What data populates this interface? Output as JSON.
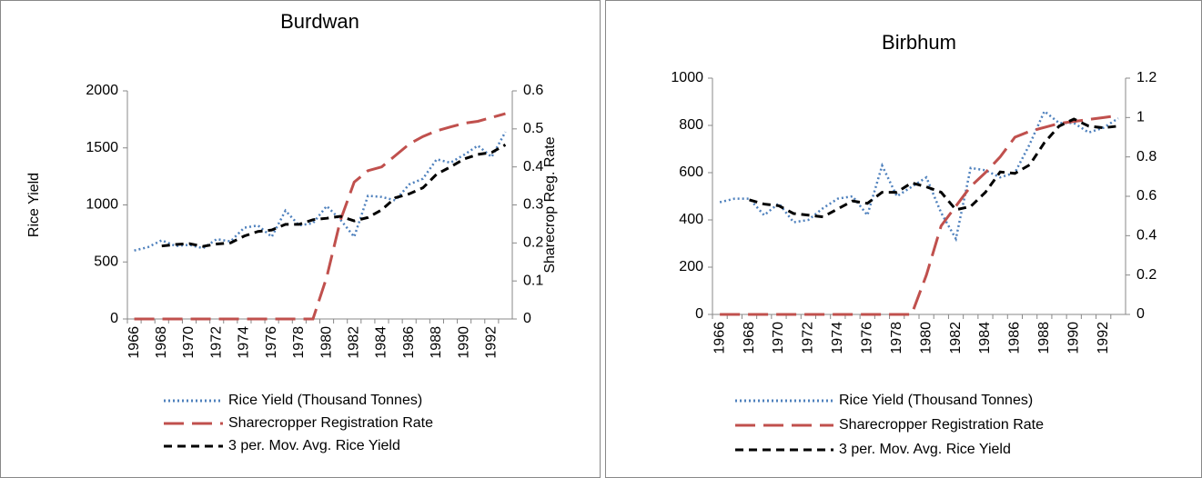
{
  "chart_data": [
    {
      "type": "line",
      "title": "Burdwan",
      "ylabel": "Rice Yield",
      "y2label": "Sharecrop Reg. Rate",
      "categories": [
        "1966",
        null,
        "1968",
        null,
        "1970",
        null,
        "1972",
        null,
        "1974",
        null,
        "1976",
        null,
        "1978",
        null,
        "1980",
        null,
        "1982",
        null,
        "1984",
        null,
        "1986",
        null,
        "1988",
        null,
        "1990",
        null,
        "1992",
        null
      ],
      "series": [
        {
          "name": "Rice Yield (Thousand Tonnes)",
          "color": "#4f81bd",
          "line_style": "dotted",
          "values": [
            600,
            630,
            690,
            640,
            650,
            620,
            700,
            680,
            800,
            820,
            720,
            950,
            820,
            840,
            990,
            870,
            720,
            1080,
            1070,
            1040,
            1180,
            1230,
            1400,
            1370,
            1440,
            1520,
            1420,
            1640
          ]
        },
        {
          "name": "Sharecropper Registration Rate",
          "color": "#c0504d",
          "line_style": "long-dash",
          "axis": "y2",
          "values": [
            0,
            0,
            0,
            0,
            0,
            0,
            0,
            0,
            0,
            0,
            0,
            0,
            0,
            0,
            0.11,
            0.26,
            0.36,
            0.39,
            0.4,
            0.43,
            0.46,
            0.48,
            0.495,
            0.505,
            0.515,
            0.52,
            0.53,
            0.54
          ]
        },
        {
          "name": "3 per. Mov. Avg. Rice Yield",
          "color": "#000000",
          "line_style": "dashed",
          "values": [
            null,
            null,
            640,
            653,
            660,
            637,
            657,
            667,
            727,
            767,
            780,
            830,
            830,
            870,
            883,
            900,
            860,
            890,
            957,
            1063,
            1097,
            1150,
            1270,
            1333,
            1403,
            1443,
            1460,
            1527
          ]
        }
      ],
      "ylim": [
        0,
        2000
      ],
      "yticks": [
        0,
        500,
        1000,
        1500,
        2000
      ],
      "y2lim": [
        0,
        0.6
      ],
      "y2ticks": [
        0,
        0.1,
        0.2,
        0.3,
        0.4,
        0.5,
        0.6
      ]
    },
    {
      "type": "line",
      "title": "Birbhum",
      "categories": [
        "1966",
        null,
        "1968",
        null,
        "1970",
        null,
        "1972",
        null,
        "1974",
        null,
        "1976",
        null,
        "1978",
        null,
        "1980",
        null,
        "1982",
        null,
        "1984",
        null,
        "1986",
        null,
        "1988",
        null,
        "1990",
        null,
        "1992",
        null
      ],
      "series": [
        {
          "name": "Rice Yield (Thousand Tonnes)",
          "color": "#4f81bd",
          "line_style": "dotted",
          "values": [
            475,
            490,
            490,
            420,
            470,
            390,
            400,
            450,
            490,
            500,
            420,
            630,
            500,
            540,
            580,
            430,
            320,
            620,
            610,
            580,
            600,
            720,
            860,
            810,
            810,
            770,
            790,
            830
          ]
        },
        {
          "name": "Sharecropper Registration Rate",
          "color": "#c0504d",
          "line_style": "long-dash",
          "axis": "y2",
          "values": [
            0,
            0,
            0,
            0,
            0,
            0,
            0,
            0,
            0,
            0,
            0,
            0,
            0,
            0,
            0.2,
            0.45,
            0.55,
            0.65,
            0.72,
            0.8,
            0.9,
            0.93,
            0.95,
            0.97,
            0.98,
            0.99,
            1.0,
            1.01
          ]
        },
        {
          "name": "3 per. Mov. Avg. Rice Yield",
          "color": "#000000",
          "line_style": "dashed",
          "values": [
            null,
            null,
            485,
            467,
            460,
            427,
            420,
            413,
            447,
            480,
            470,
            517,
            517,
            557,
            540,
            517,
            443,
            457,
            517,
            603,
            597,
            633,
            727,
            797,
            827,
            797,
            790,
            797
          ]
        }
      ],
      "ylim": [
        0,
        1000
      ],
      "yticks": [
        0,
        200,
        400,
        600,
        800,
        1000
      ],
      "y2lim": [
        0,
        1.2
      ],
      "y2ticks": [
        0,
        0.2,
        0.4,
        0.6,
        0.8,
        1,
        1.2
      ]
    }
  ]
}
